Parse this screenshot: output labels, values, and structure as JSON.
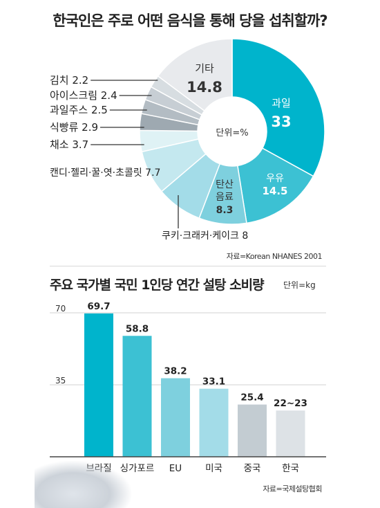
{
  "title": "한국인은 주로 어떤 음식을 통해 당을 섭취할까?",
  "pie_unit": "단위=%",
  "source1": "자료=Korean NHANES 2001",
  "title2": "주요 국가별 국민 1인당 연간 설탕 소비량",
  "unit2": "단위=kg",
  "source2": "자료=국제설탕협회",
  "colors": {
    "fruit": "#00b4cc",
    "milk": "#3cc1d3",
    "soda": "#7ed0de",
    "cookie": "#a3dce8",
    "candy": "#c4e8ef",
    "veg": "#dff2f5",
    "bread": "#9ea9b1",
    "juice": "#b3bcc3",
    "ice": "#c7ced4",
    "kimchi": "#d7dde1",
    "other": "#e8eaed"
  },
  "chart_data": [
    {
      "type": "pie",
      "title": "한국인은 주로 어떤 음식을 통해 당을 섭취할까?",
      "unit": "단위=%",
      "slices": [
        {
          "label": "과일",
          "value": 33,
          "value_text": "33"
        },
        {
          "label": "우유",
          "value": 14.5,
          "value_text": "14.5"
        },
        {
          "label": "탄산음료",
          "value": 8.3,
          "value_text": "8.3",
          "label_lines": [
            "탄산",
            "음료"
          ]
        },
        {
          "label": "쿠키·크래커·케이크",
          "value": 8,
          "value_text": "8"
        },
        {
          "label": "캔디·젤리·꿀·엿·초콜릿",
          "value": 7.7,
          "value_text": "7.7"
        },
        {
          "label": "채소",
          "value": 3.7,
          "value_text": "3.7"
        },
        {
          "label": "식빵류",
          "value": 2.9,
          "value_text": "2.9"
        },
        {
          "label": "과일주스",
          "value": 2.5,
          "value_text": "2.5"
        },
        {
          "label": "아이스크림",
          "value": 2.4,
          "value_text": "2.4"
        },
        {
          "label": "김치",
          "value": 2.2,
          "value_text": "2.2"
        },
        {
          "label": "기타",
          "value": 14.8,
          "value_text": "14.8"
        }
      ]
    },
    {
      "type": "bar",
      "title": "주요 국가별 국민 1인당 연간 설탕 소비량",
      "unit": "단위=kg",
      "categories": [
        "브라질",
        "싱가포르",
        "EU",
        "미국",
        "중국",
        "한국"
      ],
      "values": [
        69.7,
        58.8,
        38.2,
        33.1,
        25.4,
        22.5
      ],
      "value_labels": [
        "69.7",
        "58.8",
        "38.2",
        "33.1",
        "25.4",
        "22~23"
      ],
      "yticks": [
        35,
        70
      ],
      "ylim": [
        0,
        70
      ]
    }
  ]
}
